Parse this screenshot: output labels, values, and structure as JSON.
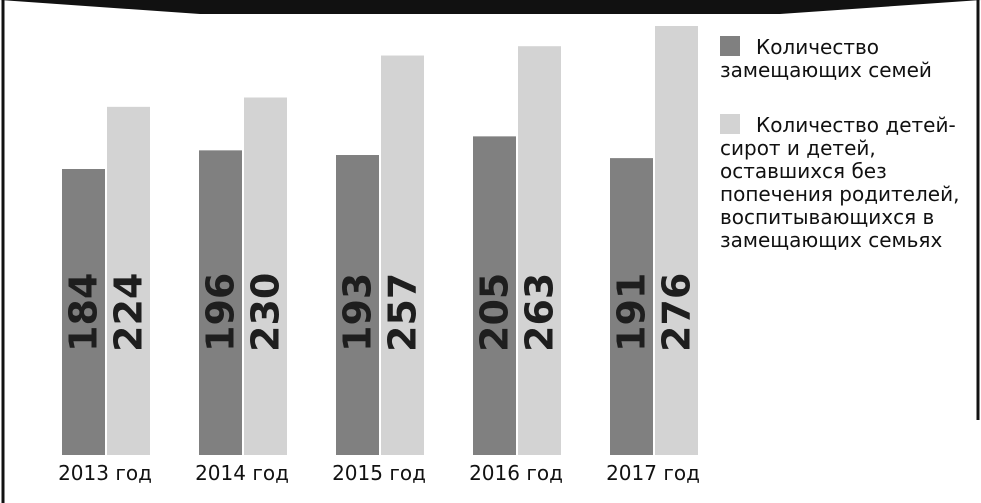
{
  "chart_data": {
    "type": "bar",
    "categories": [
      "2013 год",
      "2014 год",
      "2015 год",
      "2016 год",
      "2017 год"
    ],
    "series": [
      {
        "name": "Количество замещающих семей",
        "color": "#808080",
        "values": [
          184,
          196,
          193,
          205,
          191
        ]
      },
      {
        "name": "Количество детей-сирот и детей, оставшихся без попечения родителей, воспитывающихся в замещающих семьях",
        "color": "#d3d3d3",
        "values": [
          224,
          230,
          257,
          263,
          276
        ]
      }
    ]
  }
}
